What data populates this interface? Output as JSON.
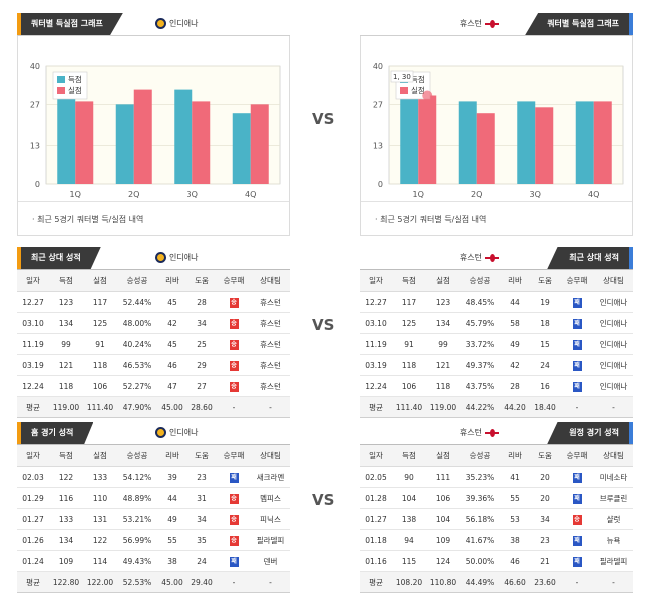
{
  "home_team": "인디애나",
  "away_team": "휴스턴",
  "vs_label": "VS",
  "quarter_section": {
    "title": "쿼터별 득실점 그래프",
    "note": "· 최근 5경기 쿼터별 득/실점 내역",
    "legend_scored": "득점",
    "legend_allowed": "실점",
    "tooltip": "1, 30"
  },
  "colors": {
    "scored": "#4ab3c7",
    "allowed": "#f06a79",
    "home_accent": "#f39c12",
    "away_accent": "#3b7dd8"
  },
  "chart_data": [
    {
      "type": "bar",
      "team": "인디애나",
      "categories": [
        "1Q",
        "2Q",
        "3Q",
        "4Q"
      ],
      "series": [
        {
          "name": "득점",
          "values": [
            29,
            27,
            32,
            24
          ]
        },
        {
          "name": "실점",
          "values": [
            28,
            32,
            28,
            27
          ]
        }
      ],
      "yticks": [
        0,
        13,
        27,
        40
      ],
      "ylim": [
        0,
        40
      ],
      "legend": "top-left",
      "grid": true
    },
    {
      "type": "bar",
      "team": "휴스턴",
      "categories": [
        "1Q",
        "2Q",
        "3Q",
        "4Q"
      ],
      "series": [
        {
          "name": "득점",
          "values": [
            29,
            28,
            28,
            28
          ]
        },
        {
          "name": "실점",
          "values": [
            30,
            24,
            26,
            28
          ]
        }
      ],
      "yticks": [
        0,
        13,
        27,
        40
      ],
      "ylim": [
        0,
        40
      ],
      "legend": "top-left",
      "grid": true
    }
  ],
  "columns": [
    "일자",
    "득점",
    "실점",
    "승성공",
    "리바",
    "도움",
    "승무패",
    "상대팀"
  ],
  "recent_home": {
    "title": "최근 상대 성적",
    "team": "인디애나",
    "rows": [
      [
        "12.27",
        "123",
        "117",
        "52.44%",
        "45",
        "28",
        "승",
        "휴스턴"
      ],
      [
        "03.10",
        "134",
        "125",
        "48.00%",
        "42",
        "34",
        "승",
        "휴스턴"
      ],
      [
        "11.19",
        "99",
        "91",
        "40.24%",
        "45",
        "25",
        "승",
        "휴스턴"
      ],
      [
        "03.19",
        "121",
        "118",
        "46.53%",
        "46",
        "29",
        "승",
        "휴스턴"
      ],
      [
        "12.24",
        "118",
        "106",
        "52.27%",
        "47",
        "27",
        "승",
        "휴스턴"
      ]
    ],
    "avg": [
      "평균",
      "119.00",
      "111.40",
      "47.90%",
      "45.00",
      "28.60",
      "-",
      "-"
    ]
  },
  "recent_away": {
    "title": "최근 상대 성적",
    "team": "휴스턴",
    "rows": [
      [
        "12.27",
        "117",
        "123",
        "48.45%",
        "44",
        "19",
        "패",
        "인디애나"
      ],
      [
        "03.10",
        "125",
        "134",
        "45.79%",
        "58",
        "18",
        "패",
        "인디애나"
      ],
      [
        "11.19",
        "91",
        "99",
        "33.72%",
        "49",
        "15",
        "패",
        "인디애나"
      ],
      [
        "03.19",
        "118",
        "121",
        "49.37%",
        "42",
        "24",
        "패",
        "인디애나"
      ],
      [
        "12.24",
        "106",
        "118",
        "43.75%",
        "28",
        "16",
        "패",
        "인디애나"
      ]
    ],
    "avg": [
      "평균",
      "111.40",
      "119.00",
      "44.22%",
      "44.20",
      "18.40",
      "-",
      "-"
    ]
  },
  "home_games": {
    "title": "홈 경기 성적",
    "team": "인디애나",
    "rows": [
      [
        "02.03",
        "122",
        "133",
        "54.12%",
        "39",
        "23",
        "패",
        "새크라멘"
      ],
      [
        "01.29",
        "116",
        "110",
        "48.89%",
        "44",
        "31",
        "승",
        "멤피스"
      ],
      [
        "01.27",
        "133",
        "131",
        "53.21%",
        "49",
        "34",
        "승",
        "피닉스"
      ],
      [
        "01.26",
        "134",
        "122",
        "56.99%",
        "55",
        "35",
        "승",
        "필라델피"
      ],
      [
        "01.24",
        "109",
        "114",
        "49.43%",
        "38",
        "24",
        "패",
        "덴버"
      ]
    ],
    "avg": [
      "평균",
      "122.80",
      "122.00",
      "52.53%",
      "45.00",
      "29.40",
      "-",
      "-"
    ]
  },
  "away_games": {
    "title": "원정 경기 성적",
    "team": "휴스턴",
    "rows": [
      [
        "02.05",
        "90",
        "111",
        "35.23%",
        "41",
        "20",
        "패",
        "미네소타"
      ],
      [
        "01.28",
        "104",
        "106",
        "39.36%",
        "55",
        "20",
        "패",
        "브루클린"
      ],
      [
        "01.27",
        "138",
        "104",
        "56.18%",
        "53",
        "34",
        "승",
        "샬럿"
      ],
      [
        "01.18",
        "94",
        "109",
        "41.67%",
        "38",
        "23",
        "패",
        "뉴욕"
      ],
      [
        "01.16",
        "115",
        "124",
        "50.00%",
        "46",
        "21",
        "패",
        "필라델피"
      ]
    ],
    "avg": [
      "평균",
      "108.20",
      "110.80",
      "44.49%",
      "46.60",
      "23.60",
      "-",
      "-"
    ]
  }
}
